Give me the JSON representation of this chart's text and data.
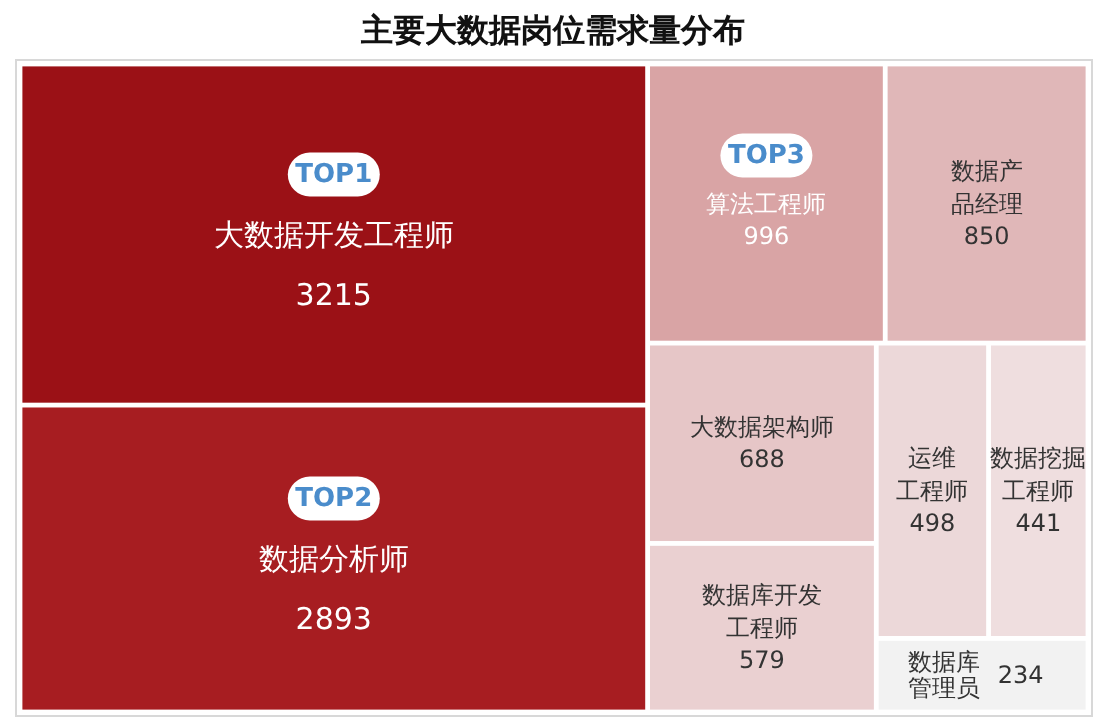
{
  "chart_data": {
    "type": "other",
    "title": "主要大数据岗位需求量分布",
    "categories": [
      "大数据开发工程师",
      "数据分析师",
      "算法工程师",
      "数据产品经理",
      "大数据架构师",
      "数据库开发工程师",
      "运维工程师",
      "数据挖掘工程师",
      "数据库管理员"
    ],
    "values": [
      3215,
      2893,
      996,
      850,
      688,
      579,
      498,
      441,
      234
    ],
    "colors": [
      "#9b1116",
      "#a71d21",
      "#d9a4a5",
      "#e0b7b8",
      "#e6c6c7",
      "#ead0d1",
      "#ecd8d9",
      "#efdedf",
      "#f2f2f2"
    ],
    "annotations": [
      "TOP1",
      "TOP2",
      "TOP3"
    ],
    "data_labels": true
  }
}
